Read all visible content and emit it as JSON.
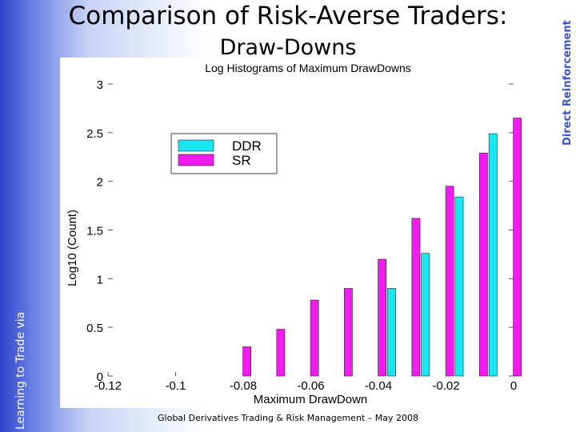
{
  "slide": {
    "title_line1": "Comparison of Risk-Averse Traders:",
    "title_line2": "Draw-Downs",
    "side_left": "Learning to Trade via",
    "side_right": "Direct Reinforcement",
    "footer": "Global Derivatives Trading & Risk Management – May 2008"
  },
  "chart_data": {
    "type": "bar",
    "title": "Log Histograms of Maximum DrawDowns",
    "xlabel": "Maximum DrawDown",
    "ylabel": "Log10 (Count)",
    "xlim": [
      -0.12,
      0
    ],
    "ylim": [
      0,
      3
    ],
    "xticks": [
      "-0.12",
      "-0.1",
      "-0.08",
      "-0.06",
      "-0.04",
      "-0.02",
      "0"
    ],
    "yticks": [
      "0",
      "0.5",
      "1",
      "1.5",
      "2",
      "2.5",
      "3"
    ],
    "bin_centers": [
      -0.0825,
      -0.0725,
      -0.0625,
      -0.0525,
      -0.0425,
      -0.0325,
      -0.0225,
      -0.0125,
      -0.0025
    ],
    "series": [
      {
        "name": "DDR",
        "color": "#19e6f0",
        "values": [
          0,
          0,
          0,
          0,
          0,
          0.9,
          1.26,
          1.84,
          2.49
        ]
      },
      {
        "name": "SR",
        "color": "#f01cf0",
        "values": [
          0.3,
          0.48,
          0.78,
          0.9,
          1.2,
          1.62,
          1.95,
          2.29,
          2.65
        ]
      }
    ],
    "legend_position": "upper-left",
    "grid": false
  }
}
